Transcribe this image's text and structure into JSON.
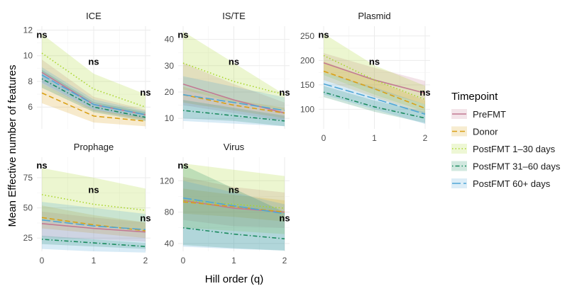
{
  "chart_data": {
    "type": "line",
    "xlabel": "Hill order (q)",
    "ylabel": "Mean Effective number of features",
    "x": [
      0,
      1,
      2
    ],
    "x_ticks": [
      "0",
      "1",
      "2"
    ],
    "legend": {
      "title": "Timepoint",
      "position": "right",
      "items": [
        {
          "name": "PreFMT",
          "color": "#c27a93",
          "dash": "solid"
        },
        {
          "name": "Donor",
          "color": "#d9a016",
          "dash": "dashed"
        },
        {
          "name": "PostFMT 1–30 days",
          "color": "#a9d52b",
          "dash": "dotted"
        },
        {
          "name": "PostFMT 31–60 days",
          "color": "#1a8a5e",
          "dash": "dotdash"
        },
        {
          "name": "PostFMT 60+ days",
          "color": "#4fa6d6",
          "dash": "longdash"
        }
      ]
    },
    "grid": true,
    "panels": [
      {
        "title": "ICE",
        "ylim": [
          4.3,
          12.3
        ],
        "yticks": [
          6,
          8,
          10,
          12
        ],
        "significance": [
          "ns",
          "ns",
          "ns"
        ],
        "series": [
          {
            "name": "PreFMT",
            "values": [
              8.7,
              6.2,
              5.4
            ],
            "lower": [
              7.8,
              5.7,
              5.0
            ],
            "upper": [
              9.7,
              6.8,
              5.8
            ]
          },
          {
            "name": "Donor",
            "values": [
              7.1,
              5.3,
              4.9
            ],
            "lower": [
              6.3,
              4.8,
              4.5
            ],
            "upper": [
              7.8,
              5.8,
              5.2
            ]
          },
          {
            "name": "PostFMT 1–30 days",
            "values": [
              10.2,
              7.4,
              6.0
            ],
            "lower": [
              8.7,
              6.3,
              5.3
            ],
            "upper": [
              11.7,
              8.6,
              7.0
            ]
          },
          {
            "name": "PostFMT 31–60 days",
            "values": [
              8.2,
              6.0,
              5.2
            ],
            "lower": [
              7.5,
              5.6,
              4.9
            ],
            "upper": [
              8.9,
              6.4,
              5.6
            ]
          },
          {
            "name": "PostFMT 60+ days",
            "values": [
              8.5,
              6.2,
              5.4
            ],
            "lower": [
              7.9,
              5.8,
              5.1
            ],
            "upper": [
              9.1,
              6.6,
              5.7
            ]
          }
        ]
      },
      {
        "title": "IS/TE",
        "ylim": [
          6,
          45
        ],
        "yticks": [
          10,
          20,
          30,
          40
        ],
        "significance": [
          "ns",
          "ns",
          "ns"
        ],
        "series": [
          {
            "name": "PreFMT",
            "values": [
              23,
              17,
              12
            ],
            "lower": [
              15,
              12,
              9
            ],
            "upper": [
              31,
              23,
              16
            ]
          },
          {
            "name": "Donor",
            "values": [
              19,
              15,
              12
            ],
            "lower": [
              16,
              13,
              10
            ],
            "upper": [
              22,
              17,
              14
            ]
          },
          {
            "name": "PostFMT 1–30 days",
            "values": [
              31,
              24,
              19
            ],
            "lower": [
              21,
              16,
              13
            ],
            "upper": [
              43,
              31,
              19
            ]
          },
          {
            "name": "PostFMT 31–60 days",
            "values": [
              13,
              11,
              9
            ],
            "lower": [
              10,
              9,
              7
            ],
            "upper": [
              17,
              14,
              11
            ]
          },
          {
            "name": "PostFMT 60+ days",
            "values": [
              19,
              16,
              13
            ],
            "lower": [
              9,
              8,
              7
            ],
            "upper": [
              26,
              22,
              18
            ]
          }
        ]
      },
      {
        "title": "Plasmid",
        "ylim": [
          60,
          270
        ],
        "yticks": [
          100,
          150,
          200,
          250
        ],
        "significance": [
          "ns",
          "ns",
          "ns"
        ],
        "series": [
          {
            "name": "PreFMT",
            "values": [
              195,
              160,
              133
            ],
            "lower": [
              175,
              140,
              110
            ],
            "upper": [
              215,
              185,
              158
            ]
          },
          {
            "name": "Donor",
            "values": [
              178,
              142,
              102
            ],
            "lower": [
              160,
              125,
              90
            ],
            "upper": [
              198,
              160,
              118
            ]
          },
          {
            "name": "PostFMT 1–30 days",
            "values": [
              210,
              160,
              120
            ],
            "lower": [
              170,
              130,
              95
            ],
            "upper": [
              255,
              190,
              148
            ]
          },
          {
            "name": "PostFMT 31–60 days",
            "values": [
              135,
              105,
              82
            ],
            "lower": [
              125,
              95,
              72
            ],
            "upper": [
              148,
              118,
              95
            ]
          },
          {
            "name": "PostFMT 60+ days",
            "values": [
              152,
              122,
              90
            ],
            "lower": [
              130,
              100,
              70
            ],
            "upper": [
              175,
              145,
              110
            ]
          }
        ]
      },
      {
        "title": "Prophage",
        "ylim": [
          14,
          92
        ],
        "yticks": [
          25,
          50,
          75
        ],
        "significance": [
          "ns",
          "ns",
          "ns"
        ],
        "series": [
          {
            "name": "PreFMT",
            "values": [
              37,
              33,
              30
            ],
            "lower": [
              26,
              24,
              22
            ],
            "upper": [
              47,
              42,
              38
            ]
          },
          {
            "name": "Donor",
            "values": [
              42,
              36,
              31
            ],
            "lower": [
              33,
              29,
              25
            ],
            "upper": [
              52,
              44,
              38
            ]
          },
          {
            "name": "PostFMT 1–30 days",
            "values": [
              61,
              53,
              48
            ],
            "lower": [
              40,
              35,
              31
            ],
            "upper": [
              83,
              75,
              66
            ]
          },
          {
            "name": "PostFMT 31–60 days",
            "values": [
              24,
              21,
              18
            ],
            "lower": [
              20,
              18,
              16
            ],
            "upper": [
              27,
              24,
              21
            ]
          },
          {
            "name": "PostFMT 60+ days",
            "values": [
              40,
              35,
              32
            ],
            "lower": [
              16,
              14,
              13
            ],
            "upper": [
              55,
              50,
              45
            ]
          }
        ]
      },
      {
        "title": "Virus",
        "ylim": [
          30,
          150
        ],
        "yticks": [
          40,
          80,
          120
        ],
        "significance": [
          "ns",
          "ns",
          "ns"
        ],
        "series": [
          {
            "name": "PreFMT",
            "values": [
              95,
              85,
              80
            ],
            "lower": [
              70,
              62,
              60
            ],
            "upper": [
              125,
              112,
              105
            ]
          },
          {
            "name": "Donor",
            "values": [
              93,
              87,
              80
            ],
            "lower": [
              78,
              74,
              68
            ],
            "upper": [
              110,
              102,
              95
            ]
          },
          {
            "name": "PostFMT 1–30 days",
            "values": [
              95,
              90,
              85
            ],
            "lower": [
              60,
              56,
              52
            ],
            "upper": [
              142,
              134,
              126
            ]
          },
          {
            "name": "PostFMT 31–60 days",
            "values": [
              60,
              52,
              46
            ],
            "lower": [
              38,
              34,
              31
            ],
            "upper": [
              140,
              110,
              80
            ]
          },
          {
            "name": "PostFMT 60+ days",
            "values": [
              98,
              88,
              78
            ],
            "lower": [
              36,
              33,
              31
            ],
            "upper": [
              120,
              105,
              90
            ]
          }
        ]
      }
    ]
  }
}
